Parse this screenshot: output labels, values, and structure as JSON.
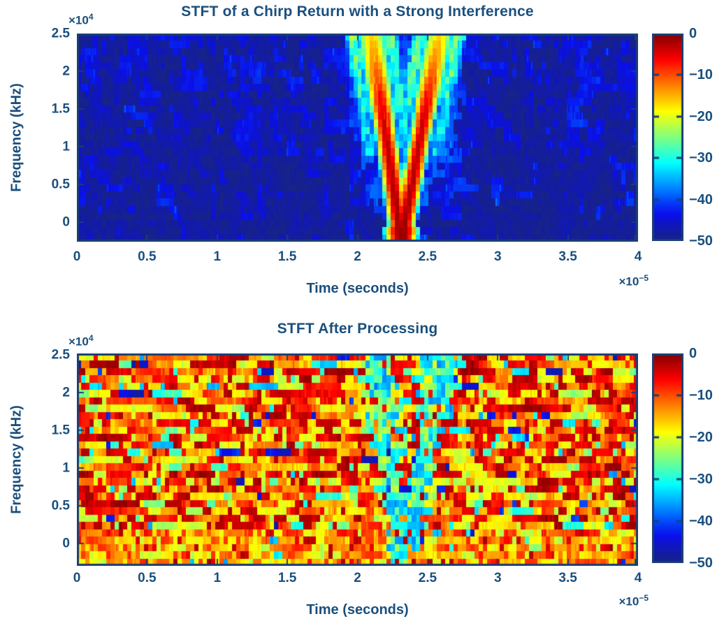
{
  "figure": {
    "background": "#ffffff",
    "ink_color": "#1a4f7d",
    "frame_color": "#1b3f74"
  },
  "chart_data": [
    {
      "type": "heatmap",
      "title": "STFT of a Chirp Return with a Strong Interference",
      "xlabel": "Time (seconds)",
      "ylabel": "Frequency (kHz)",
      "x_multiplier_base": "×10",
      "x_multiplier_exp": "−5",
      "y_multiplier_base": "×10",
      "y_multiplier_exp": "4",
      "xlim": [
        0,
        4e-05
      ],
      "ylim": [
        0,
        25000
      ],
      "xticks": {
        "values": [
          0,
          0.5,
          1,
          1.5,
          2,
          2.5,
          3,
          3.5,
          4
        ],
        "labels": [
          "0",
          "0.5",
          "1",
          "1.5",
          "2",
          "2.5",
          "3",
          "3.5",
          "4"
        ],
        "unit_scale": 1e-05
      },
      "yticks": {
        "values": [
          0,
          0.5,
          1,
          1.5,
          2,
          2.5
        ],
        "labels": [
          "0",
          "0.5",
          "1",
          "1.5",
          "2",
          "2.5"
        ],
        "unit_scale": 10000
      },
      "colorbar": {
        "colormap": "jet",
        "clim": [
          -50,
          0
        ],
        "tick_values": [
          0,
          -10,
          -20,
          -30,
          -40,
          -50
        ],
        "tick_labels": [
          "0",
          "−10",
          "−20",
          "−30",
          "−40",
          "−50"
        ]
      },
      "bins": {
        "time": 134,
        "freq": 29
      },
      "signal": {
        "kind": "v-chirp-over-noise-floor",
        "vertex_time": 2.315e-05,
        "vertex_freq": 0,
        "arm_top_times": [
          2.1e-05,
          2.585e-05
        ],
        "arm_top_freq": 25000,
        "peak_db": 0,
        "noise_floor_db": -48
      }
    },
    {
      "type": "heatmap",
      "title": "STFT After Processing",
      "xlabel": "Time (seconds)",
      "ylabel": "Frequency (kHz)",
      "x_multiplier_base": "×10",
      "x_multiplier_exp": "−5",
      "y_multiplier_base": "×10",
      "y_multiplier_exp": "4",
      "xlim": [
        0,
        4e-05
      ],
      "ylim": [
        0,
        25000
      ],
      "xticks": {
        "values": [
          0,
          0.5,
          1,
          1.5,
          2,
          2.5,
          3,
          3.5,
          4
        ],
        "labels": [
          "0",
          "0.5",
          "1",
          "1.5",
          "2",
          "2.5",
          "3",
          "3.5",
          "4"
        ],
        "unit_scale": 1e-05
      },
      "yticks": {
        "values": [
          0,
          0.5,
          1,
          1.5,
          2,
          2.5
        ],
        "labels": [
          "0",
          "0.5",
          "1",
          "1.5",
          "2",
          "2.5"
        ],
        "unit_scale": 10000
      },
      "colorbar": {
        "colormap": "jet",
        "clim": [
          -50,
          0
        ],
        "tick_values": [
          0,
          -10,
          -20,
          -30,
          -40,
          -50
        ],
        "tick_labels": [
          "0",
          "−10",
          "−20",
          "−30",
          "−40",
          "−50"
        ]
      },
      "bins": {
        "time": 134,
        "freq": 29
      },
      "signal": {
        "kind": "noise-with-v-notch",
        "vertex_time": 2.32e-05,
        "vertex_freq": 0,
        "arm_top_times": [
          2.13e-05,
          2.63e-05
        ],
        "arm_top_freq": 25000,
        "noise_level_db": -8,
        "notch_db": -30
      }
    }
  ]
}
